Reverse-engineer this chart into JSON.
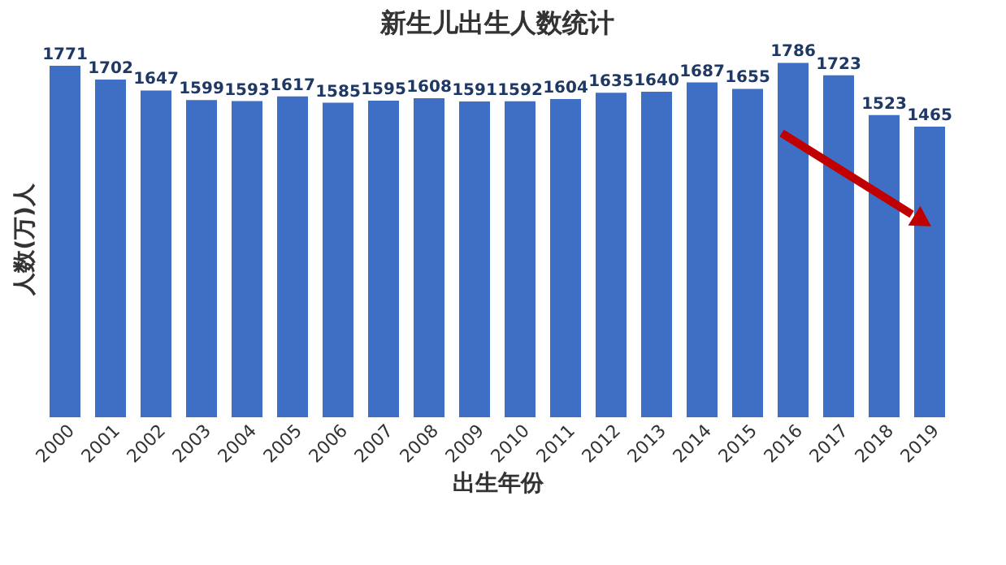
{
  "chart_data": {
    "type": "bar",
    "title": "新生儿出生人数统计",
    "xlabel": "出生年份",
    "ylabel": "人数(万)人",
    "categories": [
      "2000",
      "2001",
      "2002",
      "2003",
      "2004",
      "2005",
      "2006",
      "2007",
      "2008",
      "2009",
      "2010",
      "2011",
      "2012",
      "2013",
      "2014",
      "2015",
      "2016",
      "2017",
      "2018",
      "2019"
    ],
    "values": [
      1771,
      1702,
      1647,
      1599,
      1593,
      1617,
      1585,
      1595,
      1608,
      1591,
      1592,
      1604,
      1635,
      1640,
      1687,
      1655,
      1786,
      1723,
      1523,
      1465
    ],
    "color": "#3f6fc4",
    "data_labels": true,
    "tick_labels": "x",
    "grid": false
  }
}
